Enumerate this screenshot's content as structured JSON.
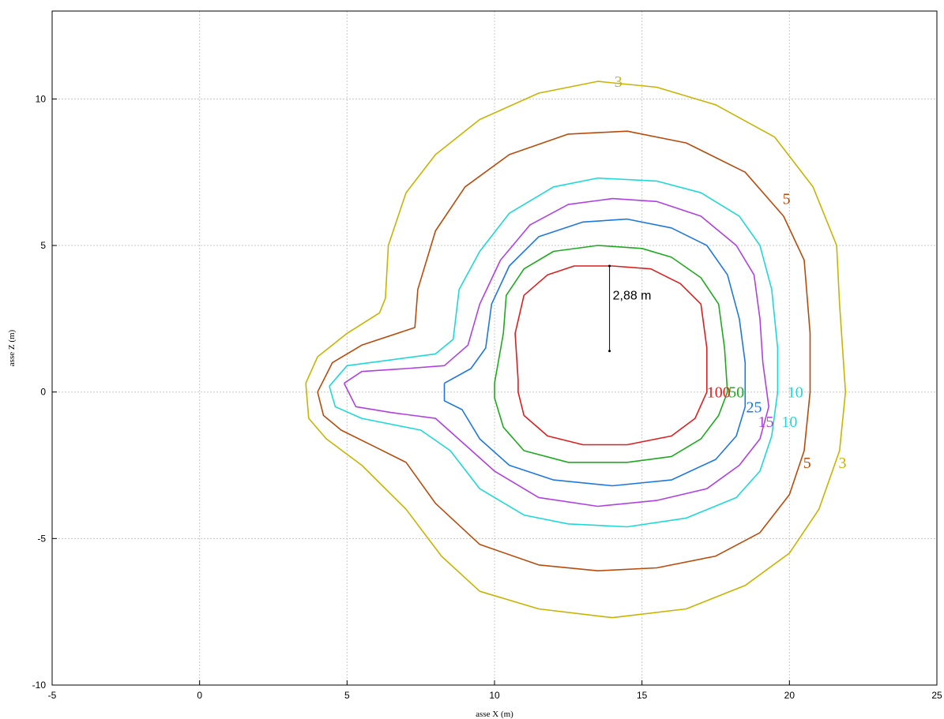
{
  "chart_data": {
    "type": "contour",
    "xlabel": "asse X (m)",
    "ylabel": "asse Z (m)",
    "xlim": [
      -5,
      25
    ],
    "ylim": [
      -10,
      13
    ],
    "xticks": [
      -5,
      0,
      5,
      10,
      15,
      20,
      25
    ],
    "yticks": [
      -10,
      -5,
      0,
      5,
      10
    ],
    "xtick_labels": [
      "-5",
      "0",
      "5",
      "10",
      "15",
      "20",
      "25"
    ],
    "ytick_labels": [
      "-10",
      "-5",
      "0",
      "5",
      "10"
    ],
    "grid": true,
    "annotation": {
      "text": "2,88 m",
      "x": 13.9,
      "y_from": 1.4,
      "y_to": 4.3
    },
    "series": [
      {
        "level": "3",
        "color": "#c8b400",
        "points": [
          [
            3.6,
            0.3
          ],
          [
            4.0,
            1.2
          ],
          [
            5.0,
            2.0
          ],
          [
            6.1,
            2.7
          ],
          [
            6.3,
            3.2
          ],
          [
            6.4,
            5.0
          ],
          [
            7.0,
            6.8
          ],
          [
            8.0,
            8.1
          ],
          [
            9.5,
            9.3
          ],
          [
            11.5,
            10.2
          ],
          [
            13.5,
            10.6
          ],
          [
            15.5,
            10.4
          ],
          [
            17.5,
            9.8
          ],
          [
            19.5,
            8.7
          ],
          [
            20.8,
            7.0
          ],
          [
            21.6,
            5.0
          ],
          [
            21.7,
            3.0
          ],
          [
            21.9,
            0.0
          ],
          [
            21.7,
            -2.0
          ],
          [
            21.0,
            -4.0
          ],
          [
            20.0,
            -5.5
          ],
          [
            18.5,
            -6.6
          ],
          [
            16.5,
            -7.4
          ],
          [
            14.0,
            -7.7
          ],
          [
            11.5,
            -7.4
          ],
          [
            9.5,
            -6.8
          ],
          [
            8.2,
            -5.6
          ],
          [
            7.0,
            -4.0
          ],
          [
            5.5,
            -2.5
          ],
          [
            4.3,
            -1.6
          ],
          [
            3.7,
            -0.9
          ],
          [
            3.6,
            0.3
          ]
        ],
        "labels": [
          [
            14.2,
            10.6
          ],
          [
            21.8,
            -2.4
          ]
        ]
      },
      {
        "level": "5",
        "color": "#b84b0a",
        "points": [
          [
            4.0,
            0.0
          ],
          [
            4.5,
            1.0
          ],
          [
            5.5,
            1.6
          ],
          [
            7.3,
            2.2
          ],
          [
            7.4,
            3.5
          ],
          [
            8.0,
            5.5
          ],
          [
            9.0,
            7.0
          ],
          [
            10.5,
            8.1
          ],
          [
            12.5,
            8.8
          ],
          [
            14.5,
            8.9
          ],
          [
            16.5,
            8.5
          ],
          [
            18.5,
            7.5
          ],
          [
            19.8,
            6.0
          ],
          [
            20.5,
            4.5
          ],
          [
            20.7,
            2.0
          ],
          [
            20.7,
            0.0
          ],
          [
            20.5,
            -2.0
          ],
          [
            20.0,
            -3.5
          ],
          [
            19.0,
            -4.8
          ],
          [
            17.5,
            -5.6
          ],
          [
            15.5,
            -6.0
          ],
          [
            13.5,
            -6.1
          ],
          [
            11.5,
            -5.9
          ],
          [
            9.5,
            -5.2
          ],
          [
            8.0,
            -3.8
          ],
          [
            7.0,
            -2.4
          ],
          [
            6.0,
            -1.9
          ],
          [
            4.8,
            -1.3
          ],
          [
            4.2,
            -0.8
          ],
          [
            4.0,
            0.0
          ]
        ],
        "labels": [
          [
            19.9,
            6.6
          ],
          [
            20.6,
            -2.4
          ]
        ]
      },
      {
        "level": "10",
        "color": "#1ed8d8",
        "points": [
          [
            4.4,
            0.2
          ],
          [
            5.0,
            0.9
          ],
          [
            6.5,
            1.1
          ],
          [
            8.0,
            1.3
          ],
          [
            8.6,
            1.8
          ],
          [
            8.8,
            3.5
          ],
          [
            9.5,
            4.8
          ],
          [
            10.5,
            6.1
          ],
          [
            12.0,
            7.0
          ],
          [
            13.5,
            7.3
          ],
          [
            15.5,
            7.2
          ],
          [
            17.0,
            6.8
          ],
          [
            18.3,
            6.0
          ],
          [
            19.0,
            5.0
          ],
          [
            19.4,
            3.5
          ],
          [
            19.6,
            1.5
          ],
          [
            19.6,
            0.0
          ],
          [
            19.4,
            -1.5
          ],
          [
            19.0,
            -2.7
          ],
          [
            18.2,
            -3.6
          ],
          [
            16.5,
            -4.3
          ],
          [
            14.5,
            -4.6
          ],
          [
            12.5,
            -4.5
          ],
          [
            11.0,
            -4.2
          ],
          [
            9.5,
            -3.3
          ],
          [
            8.5,
            -2.0
          ],
          [
            7.5,
            -1.3
          ],
          [
            5.5,
            -0.9
          ],
          [
            4.6,
            -0.5
          ],
          [
            4.4,
            0.2
          ]
        ],
        "labels": [
          [
            20.2,
            0.0
          ],
          [
            20.0,
            -1.0
          ]
        ]
      },
      {
        "level": "15",
        "color": "#b040e0",
        "points": [
          [
            4.9,
            0.3
          ],
          [
            5.5,
            0.7
          ],
          [
            7.0,
            0.8
          ],
          [
            8.3,
            0.9
          ],
          [
            9.1,
            1.6
          ],
          [
            9.5,
            3.0
          ],
          [
            10.2,
            4.5
          ],
          [
            11.2,
            5.7
          ],
          [
            12.5,
            6.4
          ],
          [
            14.0,
            6.6
          ],
          [
            15.5,
            6.5
          ],
          [
            17.0,
            6.0
          ],
          [
            18.2,
            5.0
          ],
          [
            18.8,
            4.0
          ],
          [
            19.0,
            2.5
          ],
          [
            19.1,
            1.0
          ],
          [
            19.3,
            -0.5
          ],
          [
            19.0,
            -1.6
          ],
          [
            18.3,
            -2.5
          ],
          [
            17.2,
            -3.3
          ],
          [
            15.5,
            -3.7
          ],
          [
            13.5,
            -3.9
          ],
          [
            11.5,
            -3.6
          ],
          [
            10.0,
            -2.7
          ],
          [
            9.0,
            -1.8
          ],
          [
            8.0,
            -0.9
          ],
          [
            6.5,
            -0.7
          ],
          [
            5.3,
            -0.5
          ],
          [
            4.9,
            0.3
          ]
        ],
        "labels": [
          [
            19.2,
            -1.0
          ]
        ]
      },
      {
        "level": "25",
        "color": "#1e78dc",
        "points": [
          [
            8.3,
            0.3
          ],
          [
            9.2,
            0.8
          ],
          [
            9.7,
            1.5
          ],
          [
            9.9,
            3.0
          ],
          [
            10.5,
            4.3
          ],
          [
            11.5,
            5.3
          ],
          [
            13.0,
            5.8
          ],
          [
            14.5,
            5.9
          ],
          [
            16.0,
            5.6
          ],
          [
            17.2,
            5.0
          ],
          [
            17.9,
            4.0
          ],
          [
            18.3,
            2.5
          ],
          [
            18.5,
            1.0
          ],
          [
            18.5,
            -0.5
          ],
          [
            18.2,
            -1.5
          ],
          [
            17.5,
            -2.3
          ],
          [
            16.0,
            -3.0
          ],
          [
            14.0,
            -3.2
          ],
          [
            12.0,
            -3.0
          ],
          [
            10.5,
            -2.5
          ],
          [
            9.5,
            -1.6
          ],
          [
            8.9,
            -0.6
          ],
          [
            8.3,
            -0.3
          ],
          [
            8.3,
            0.3
          ]
        ],
        "labels": [
          [
            18.8,
            -0.5
          ]
        ]
      },
      {
        "level": "50",
        "color": "#1eaa1e",
        "points": [
          [
            10.0,
            0.3
          ],
          [
            10.3,
            2.0
          ],
          [
            10.4,
            3.3
          ],
          [
            11.0,
            4.2
          ],
          [
            12.0,
            4.8
          ],
          [
            13.5,
            5.0
          ],
          [
            15.0,
            4.9
          ],
          [
            16.0,
            4.6
          ],
          [
            17.0,
            3.9
          ],
          [
            17.6,
            3.0
          ],
          [
            17.8,
            1.5
          ],
          [
            17.9,
            0.0
          ],
          [
            17.6,
            -0.8
          ],
          [
            17.0,
            -1.6
          ],
          [
            16.0,
            -2.2
          ],
          [
            14.5,
            -2.4
          ],
          [
            12.5,
            -2.4
          ],
          [
            11.0,
            -2.0
          ],
          [
            10.3,
            -1.2
          ],
          [
            10.0,
            -0.2
          ],
          [
            10.0,
            0.3
          ]
        ],
        "labels": [
          [
            18.2,
            0.0
          ]
        ]
      },
      {
        "level": "100",
        "color": "#dc1e1e",
        "points": [
          [
            10.8,
            0.4
          ],
          [
            10.7,
            2.0
          ],
          [
            11.0,
            3.3
          ],
          [
            11.8,
            4.0
          ],
          [
            12.7,
            4.3
          ],
          [
            14.0,
            4.3
          ],
          [
            15.3,
            4.2
          ],
          [
            16.3,
            3.7
          ],
          [
            17.0,
            3.0
          ],
          [
            17.2,
            1.5
          ],
          [
            17.2,
            0.0
          ],
          [
            16.8,
            -0.9
          ],
          [
            16.0,
            -1.5
          ],
          [
            14.5,
            -1.8
          ],
          [
            13.0,
            -1.8
          ],
          [
            11.8,
            -1.5
          ],
          [
            11.0,
            -0.8
          ],
          [
            10.8,
            0.0
          ],
          [
            10.8,
            0.4
          ]
        ],
        "labels": [
          [
            17.6,
            0.0
          ]
        ]
      }
    ]
  }
}
